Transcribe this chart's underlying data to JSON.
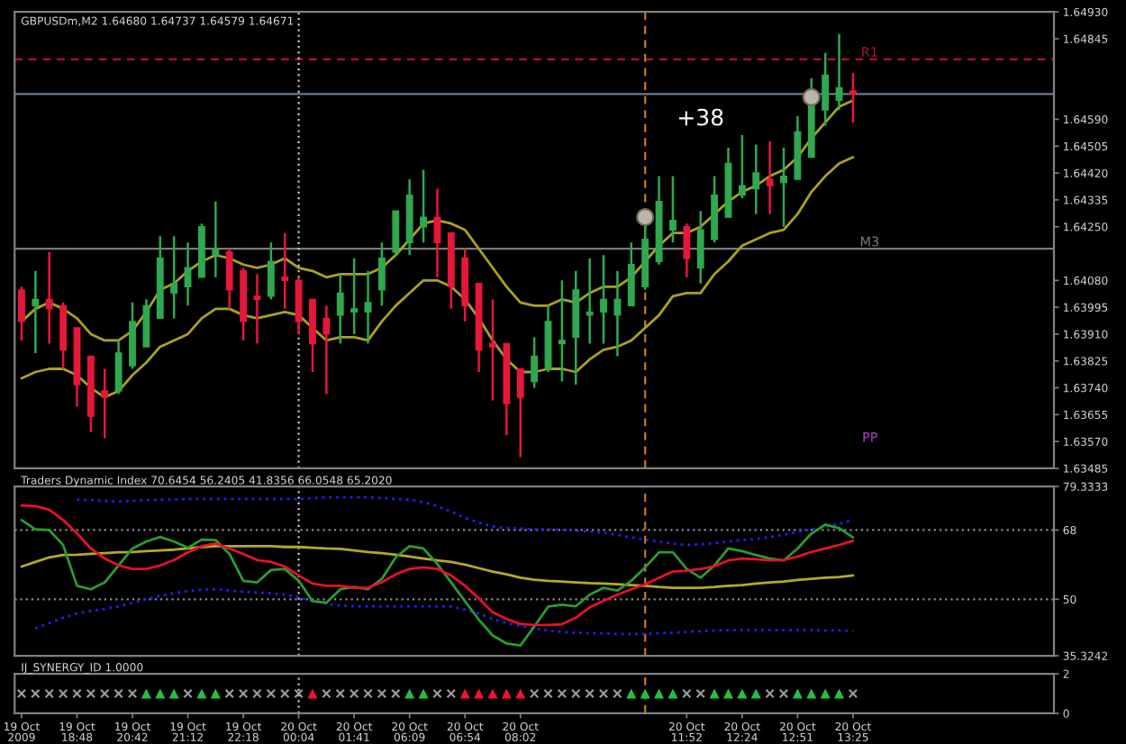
{
  "chart_data": [
    {
      "type": "candlestick",
      "title": "GBPUSDm,M2 1.64680 1.64737 1.64579 1.64671",
      "categories": [
        "19 Oct 2009",
        null,
        null,
        null,
        "19 Oct 18:48",
        null,
        null,
        null,
        "19 Oct 20:42",
        null,
        null,
        null,
        "19 Oct 21:12",
        null,
        null,
        null,
        "19 Oct 22:18",
        null,
        null,
        null,
        "20 Oct 00:04",
        null,
        null,
        null,
        "20 Oct 01:41",
        null,
        null,
        null,
        "20 Oct 06:09",
        null,
        null,
        null,
        "20 Oct 06:54",
        null,
        null,
        null,
        "20 Oct 08:02",
        null,
        null,
        null,
        null,
        null,
        null,
        null,
        null,
        null,
        null,
        null,
        "20 Oct 11:52",
        null,
        null,
        null,
        "20 Oct 12:24",
        null,
        null,
        null,
        "20 Oct 12:51",
        null,
        null,
        null,
        "20 Oct 13:25",
        null,
        null,
        null,
        null,
        null,
        null,
        null,
        null,
        null,
        null,
        null,
        null,
        null,
        null
      ],
      "ohlc": [
        [
          1.6405,
          1.6406,
          1.6389,
          1.6395
        ],
        [
          1.64,
          1.6411,
          1.6385,
          1.6402
        ],
        [
          1.6402,
          1.6417,
          1.6388,
          1.6399
        ],
        [
          1.64,
          1.6401,
          1.638,
          1.6386
        ],
        [
          1.6393,
          1.6393,
          1.6368,
          1.6375
        ],
        [
          1.6384,
          1.6384,
          1.636,
          1.6365
        ],
        [
          1.6373,
          1.638,
          1.6358,
          1.6371
        ],
        [
          1.6373,
          1.6389,
          1.6372,
          1.6385
        ],
        [
          1.6381,
          1.6401,
          1.638,
          1.6395
        ],
        [
          1.6387,
          1.6402,
          1.6387,
          1.64
        ],
        [
          1.6396,
          1.6422,
          1.6396,
          1.6415
        ],
        [
          1.6404,
          1.6422,
          1.6396,
          1.6407
        ],
        [
          1.6406,
          1.642,
          1.64,
          1.6412
        ],
        [
          1.6409,
          1.6426,
          1.6409,
          1.6425
        ],
        [
          1.6416,
          1.6433,
          1.6409,
          1.6418
        ],
        [
          1.6417,
          1.6418,
          1.6399,
          1.6405
        ],
        [
          1.6411,
          1.6412,
          1.6389,
          1.6395
        ],
        [
          1.6403,
          1.641,
          1.6388,
          1.6402
        ],
        [
          1.6403,
          1.642,
          1.6402,
          1.6414
        ],
        [
          1.6409,
          1.6423,
          1.6399,
          1.6408
        ],
        [
          1.6408,
          1.6409,
          1.6391,
          1.6395
        ],
        [
          1.6402,
          1.6402,
          1.6379,
          1.6388
        ],
        [
          1.6396,
          1.64,
          1.6372,
          1.6391
        ],
        [
          1.6397,
          1.641,
          1.6388,
          1.6404
        ],
        [
          1.6398,
          1.6415,
          1.6391,
          1.6399
        ],
        [
          1.6398,
          1.6411,
          1.6388,
          1.6401
        ],
        [
          1.6405,
          1.642,
          1.64,
          1.6415
        ],
        [
          1.6417,
          1.643,
          1.6416,
          1.643
        ],
        [
          1.642,
          1.644,
          1.6416,
          1.6435
        ],
        [
          1.6425,
          1.6443,
          1.642,
          1.6428
        ],
        [
          1.6428,
          1.6437,
          1.6409,
          1.642
        ],
        [
          1.6423,
          1.6423,
          1.6399,
          1.6406
        ],
        [
          1.6415,
          1.6418,
          1.6395,
          1.64
        ],
        [
          1.6407,
          1.6407,
          1.6379,
          1.6386
        ],
        [
          1.6388,
          1.6402,
          1.637,
          1.6387
        ],
        [
          1.6388,
          1.6388,
          1.6359,
          1.6369
        ],
        [
          1.638,
          1.638,
          1.6352,
          1.6371
        ],
        [
          1.6376,
          1.639,
          1.6374,
          1.6384
        ],
        [
          1.638,
          1.64,
          1.6379,
          1.6395
        ],
        [
          1.6388,
          1.6408,
          1.6376,
          1.6389
        ],
        [
          1.639,
          1.6411,
          1.6375,
          1.6405
        ],
        [
          1.6397,
          1.6415,
          1.6388,
          1.6398
        ],
        [
          1.6398,
          1.6416,
          1.6388,
          1.6402
        ],
        [
          1.6397,
          1.6411,
          1.6384,
          1.6402
        ],
        [
          1.64,
          1.642,
          1.64,
          1.6413
        ],
        [
          1.6406,
          1.6427,
          1.6405,
          1.6421
        ],
        [
          1.6414,
          1.6441,
          1.6413,
          1.6433
        ],
        [
          1.6424,
          1.6441,
          1.642,
          1.6427
        ],
        [
          1.6425,
          1.6426,
          1.6409,
          1.6415
        ],
        [
          1.6412,
          1.643,
          1.6407,
          1.6424
        ],
        [
          1.6421,
          1.6441,
          1.642,
          1.6435
        ],
        [
          1.6428,
          1.645,
          1.6428,
          1.6445
        ],
        [
          1.6435,
          1.6454,
          1.6434,
          1.6438
        ],
        [
          1.6437,
          1.6451,
          1.6429,
          1.6442
        ],
        [
          1.644,
          1.6452,
          1.6429,
          1.6438
        ],
        [
          1.6439,
          1.645,
          1.6425,
          1.6441
        ],
        [
          1.644,
          1.646,
          1.644,
          1.6455
        ],
        [
          1.6447,
          1.6472,
          1.6447,
          1.6467
        ],
        [
          1.6462,
          1.648,
          1.6457,
          1.6473
        ],
        [
          1.6465,
          1.6486,
          1.6462,
          1.6469
        ],
        [
          1.6468,
          1.64737,
          1.64579,
          1.64671
        ],
        null,
        null,
        null,
        null,
        null,
        null,
        null,
        null,
        null,
        null,
        null,
        null,
        null,
        null
      ],
      "colors": [
        "#e5173b",
        "#2fa84f",
        "#e5173b",
        "#e5173b",
        "#e5173b",
        "#e5173b",
        "#e5173b",
        "#2fa84f",
        "#2fa84f",
        "#2fa84f",
        "#2fa84f",
        "#2fa84f",
        "#2fa84f",
        "#2fa84f",
        "#2fa84f",
        "#e5173b",
        "#e5173b",
        "#e5173b",
        "#2fa84f",
        "#e5173b",
        "#e5173b",
        "#e5173b",
        "#e5173b",
        "#2fa84f",
        "#2fa84f",
        "#2fa84f",
        "#2fa84f",
        "#2fa84f",
        "#2fa84f",
        "#2fa84f",
        "#e5173b",
        "#e5173b",
        "#e5173b",
        "#e5173b",
        "#e5173b",
        "#e5173b",
        "#e5173b",
        "#2fa84f",
        "#2fa84f",
        "#2fa84f",
        "#2fa84f",
        "#2fa84f",
        "#2fa84f",
        "#2fa84f",
        "#2fa84f",
        "#2fa84f",
        "#2fa84f",
        "#2fa84f",
        "#e5173b",
        "#2fa84f",
        "#2fa84f",
        "#2fa84f",
        "#2fa84f",
        "#2fa84f",
        "#e5173b",
        "#2fa84f",
        "#2fa84f",
        "#2fa84f",
        "#2fa84f",
        "#2fa84f",
        "#e5173b",
        null,
        null,
        null,
        null,
        null,
        null,
        null,
        null,
        null,
        null,
        null,
        null,
        null,
        null
      ],
      "series": [
        {
          "type": "line",
          "color": "#aaa21e",
          "values": [
            1.6395,
            1.6399,
            1.6401,
            1.6399,
            1.6396,
            1.6391,
            1.6389,
            1.6389,
            1.6392,
            1.6398,
            1.6405,
            1.6407,
            1.6411,
            1.6414,
            1.6416,
            1.6415,
            1.6413,
            1.6412,
            1.6413,
            1.6415,
            1.6412,
            1.6411,
            1.6409,
            1.641,
            1.641,
            1.641,
            1.6412,
            1.6416,
            1.6421,
            1.6426,
            1.6427,
            1.6426,
            1.6424,
            1.6418,
            1.6412,
            1.6406,
            1.6401,
            1.64,
            1.64,
            1.6402,
            1.6401,
            1.6404,
            1.6406,
            1.6406,
            1.6409,
            1.6414,
            1.6419,
            1.6423,
            1.6423,
            1.6425,
            1.6429,
            1.6433,
            1.6436,
            1.6438,
            1.6441,
            1.6443,
            1.6447,
            1.6453,
            1.6458,
            1.6463,
            1.6465,
            null,
            null,
            null,
            null,
            null,
            null,
            null,
            null,
            null,
            null,
            null,
            null,
            null,
            null
          ]
        },
        {
          "type": "line",
          "color": "#aaa21e",
          "values": [
            1.6377,
            1.6379,
            1.638,
            1.638,
            1.6378,
            1.6374,
            1.6371,
            1.6373,
            1.6378,
            1.6382,
            1.6387,
            1.6389,
            1.6391,
            1.6396,
            1.6399,
            1.6399,
            1.6397,
            1.6396,
            1.6397,
            1.6398,
            1.6397,
            1.6393,
            1.6389,
            1.639,
            1.639,
            1.6389,
            1.6395,
            1.64,
            1.6404,
            1.6408,
            1.6408,
            1.6406,
            1.6402,
            1.6396,
            1.6389,
            1.6383,
            1.6379,
            1.6379,
            1.638,
            1.638,
            1.6379,
            1.6383,
            1.6386,
            1.6387,
            1.6389,
            1.6393,
            1.6397,
            1.6403,
            1.6404,
            1.6404,
            1.641,
            1.6414,
            1.6419,
            1.6421,
            1.6423,
            1.6424,
            1.6429,
            1.6436,
            1.6441,
            1.6445,
            1.6447,
            null,
            null,
            null,
            null,
            null,
            null,
            null,
            null,
            null,
            null,
            null,
            null,
            null,
            null
          ]
        },
        {
          "type": "scatter",
          "marker": "circle",
          "color": "#bdb6a6",
          "values": [
            null,
            null,
            null,
            null,
            null,
            null,
            null,
            null,
            null,
            null,
            null,
            null,
            null,
            null,
            null,
            null,
            null,
            null,
            null,
            null,
            null,
            null,
            null,
            null,
            null,
            null,
            null,
            null,
            null,
            null,
            null,
            null,
            null,
            null,
            null,
            null,
            null,
            null,
            null,
            null,
            null,
            null,
            null,
            null,
            null,
            1.6428,
            null,
            null,
            null,
            null,
            null,
            null,
            null,
            null,
            null,
            null,
            null,
            1.6466,
            null,
            null,
            null,
            null,
            null,
            null,
            null,
            null,
            null,
            null,
            null,
            null,
            null,
            null,
            null,
            null,
            null
          ]
        }
      ],
      "ylim": [
        1.63485,
        1.6493
      ],
      "yticks": [
        1.63485,
        {
          "value": 1.6357,
          "label": "1.63570"
        },
        1.63655,
        {
          "value": 1.6374,
          "label": "1.63740"
        },
        1.63825,
        {
          "value": 1.6391,
          "label": "1.63910"
        },
        1.63995,
        {
          "value": 1.6408,
          "label": "1.64080"
        },
        {
          "value": 1.6425,
          "label": "1.64250"
        },
        1.64335,
        {
          "value": 1.6442,
          "label": "1.64420"
        },
        1.64505,
        {
          "value": 1.6459,
          "label": "1.64590"
        },
        1.64845,
        {
          "value": 1.6493,
          "label": "1.64930"
        }
      ],
      "ref_lines": [
        {
          "axis": "y",
          "value": 1.6478,
          "label": "R1",
          "color": "#b0102c",
          "line_style": "dashed"
        },
        {
          "axis": "y",
          "value": 1.6467,
          "color": "#6b7890"
        },
        {
          "axis": "y",
          "value": 1.6418,
          "label": "M3",
          "color": "#7a7a7a"
        },
        {
          "axis": "x",
          "value": "20 Oct 00:04",
          "color": "#c8c8c8",
          "line_style": "dotted"
        }
      ],
      "annotations": [
        "+38",
        "PP"
      ],
      "tick_labels": "y"
    },
    {
      "type": "line",
      "title": "Traders Dynamic Index 70.6454 56.2405 41.8356 66.0548 65.2020",
      "categories": [
        "19 Oct 2009",
        null,
        null,
        null,
        "19 Oct 18:48",
        null,
        null,
        null,
        "19 Oct 20:42",
        null,
        null,
        null,
        "19 Oct 21:12",
        null,
        null,
        null,
        "19 Oct 22:18",
        null,
        null,
        null,
        "20 Oct 00:04",
        null,
        null,
        null,
        "20 Oct 01:41",
        null,
        null,
        null,
        "20 Oct 06:09",
        null,
        null,
        null,
        "20 Oct 06:54",
        null,
        null,
        null,
        "20 Oct 08:02",
        null,
        null,
        null,
        null,
        null,
        null,
        null,
        null,
        null,
        null,
        null,
        "20 Oct 11:52",
        null,
        null,
        null,
        "20 Oct 12:24",
        null,
        null,
        null,
        "20 Oct 12:51",
        null,
        null,
        null,
        "20 Oct 13:25",
        null,
        null,
        null,
        null,
        null,
        null,
        null,
        null,
        null,
        null,
        null,
        null,
        null,
        null
      ],
      "series": [
        {
          "color": "#2020ff",
          "line_style": "dotted",
          "values": [
            null,
            null,
            null,
            null,
            75.9,
            75.8,
            75.6,
            75.4,
            75.6,
            75.8,
            75.9,
            75.9,
            76.1,
            76.1,
            76.1,
            76.1,
            76.1,
            76.1,
            76.1,
            76.1,
            76.1,
            76.3,
            76.5,
            76.5,
            76.5,
            76.5,
            76.3,
            76.1,
            75.9,
            75.2,
            74.2,
            72.8,
            71.2,
            69.9,
            68.9,
            68.5,
            68.4,
            68.2,
            68.2,
            68.0,
            67.8,
            67.6,
            67.3,
            66.8,
            66.1,
            65.5,
            65.0,
            64.5,
            64.1,
            64.3,
            64.6,
            65.0,
            65.4,
            65.7,
            66.1,
            66.8,
            67.5,
            68.2,
            68.9,
            69.6,
            70.6,
            null,
            null,
            null,
            null,
            null,
            null,
            null,
            null,
            null,
            null,
            null,
            null,
            null,
            null
          ]
        },
        {
          "color": "#2020ff",
          "line_style": "dotted",
          "values": [
            null,
            42.4,
            43.8,
            45.2,
            46.3,
            47.0,
            47.5,
            48.2,
            49.1,
            50.0,
            50.9,
            51.6,
            52.1,
            52.5,
            52.6,
            52.3,
            51.9,
            51.8,
            51.6,
            51.2,
            50.5,
            49.5,
            48.8,
            48.4,
            48.2,
            48.2,
            48.2,
            48.2,
            48.2,
            48.2,
            48.2,
            48.1,
            47.3,
            46.3,
            44.9,
            43.8,
            43.1,
            42.4,
            41.9,
            41.5,
            41.3,
            41.2,
            41.2,
            41.0,
            41.0,
            41.0,
            41.2,
            41.3,
            41.5,
            41.7,
            41.9,
            42.0,
            42.0,
            42.0,
            42.0,
            42.0,
            42.0,
            42.0,
            41.9,
            41.9,
            41.8,
            null,
            null,
            null,
            null,
            null,
            null,
            null,
            null,
            null,
            null,
            null,
            null,
            null,
            null
          ]
        },
        {
          "color": "#b4aa28",
          "values": [
            58.5,
            59.7,
            60.9,
            61.5,
            61.6,
            61.8,
            62.0,
            62.2,
            62.3,
            62.5,
            62.7,
            62.9,
            63.2,
            63.6,
            63.8,
            63.8,
            63.8,
            63.8,
            63.8,
            63.6,
            63.6,
            63.4,
            63.2,
            63.1,
            62.7,
            62.3,
            62.0,
            61.6,
            61.1,
            60.6,
            60.1,
            59.7,
            59.0,
            58.1,
            57.2,
            56.5,
            55.6,
            55.1,
            54.8,
            54.6,
            54.4,
            54.2,
            54.1,
            53.9,
            53.7,
            53.5,
            53.2,
            53.0,
            53.0,
            53.0,
            53.2,
            53.5,
            53.7,
            54.1,
            54.4,
            54.6,
            55.0,
            55.3,
            55.6,
            55.8,
            56.2,
            null,
            null,
            null,
            null,
            null,
            null,
            null,
            null,
            null,
            null,
            null,
            null,
            null,
            null
          ]
        },
        {
          "color": "#2e9a2e",
          "values": [
            70.6,
            68.2,
            68.0,
            64.1,
            53.5,
            52.6,
            54.4,
            58.8,
            63.2,
            65.0,
            66.2,
            65.0,
            63.4,
            65.5,
            65.4,
            61.8,
            54.8,
            54.4,
            57.6,
            57.9,
            54.8,
            49.5,
            49.1,
            52.6,
            53.2,
            52.6,
            55.3,
            60.9,
            63.8,
            63.2,
            59.2,
            54.4,
            49.5,
            44.7,
            40.6,
            38.5,
            38.0,
            42.9,
            48.1,
            48.6,
            48.2,
            51.2,
            53.0,
            52.3,
            54.8,
            58.3,
            62.2,
            62.2,
            57.9,
            55.6,
            58.8,
            63.2,
            62.5,
            61.5,
            60.6,
            60.1,
            63.2,
            67.1,
            69.4,
            68.5,
            66.1,
            null,
            null,
            null,
            null,
            null,
            null,
            null,
            null,
            null,
            null,
            null,
            null,
            null,
            null
          ]
        },
        {
          "color": "#e8102a",
          "values": [
            74.4,
            74.2,
            73.3,
            70.6,
            67.1,
            63.2,
            60.6,
            58.8,
            57.9,
            57.9,
            58.8,
            60.2,
            62.2,
            63.8,
            64.5,
            63.2,
            61.8,
            60.2,
            59.7,
            58.5,
            56.2,
            54.1,
            53.5,
            53.5,
            53.0,
            53.0,
            54.4,
            56.5,
            57.9,
            58.3,
            57.9,
            56.2,
            53.5,
            50.2,
            46.6,
            44.9,
            43.6,
            43.3,
            43.3,
            43.5,
            45.2,
            47.9,
            49.6,
            51.2,
            52.6,
            53.9,
            55.6,
            57.2,
            57.4,
            57.9,
            58.6,
            60.1,
            60.6,
            60.4,
            60.1,
            60.2,
            61.1,
            62.3,
            63.2,
            64.1,
            65.2,
            null,
            null,
            null,
            null,
            null,
            null,
            null,
            null,
            null,
            null,
            null,
            null,
            null,
            null
          ]
        }
      ],
      "ylim": [
        35.3242,
        79.3333
      ],
      "yticks": [
        35.3242,
        50,
        68,
        79.3333
      ],
      "ref_lines": [
        {
          "axis": "y",
          "value": 68,
          "color": "#8c8c8c",
          "line_style": "dotted"
        },
        {
          "axis": "y",
          "value": 50,
          "color": "#8c8c8c",
          "line_style": "dotted"
        },
        {
          "axis": "x",
          "value": "20 Oct 00:04",
          "color": "#c8c8c8",
          "line_style": "dotted"
        }
      ],
      "tick_labels": "y"
    },
    {
      "type": "scatter",
      "title": "IJ_SYNERGY_ID 1.0000",
      "categories": [
        "19 Oct 2009",
        null,
        null,
        null,
        "19 Oct 18:48",
        null,
        null,
        null,
        "19 Oct 20:42",
        null,
        null,
        null,
        "19 Oct 21:12",
        null,
        null,
        null,
        "19 Oct 22:18",
        null,
        null,
        null,
        "20 Oct 00:04",
        null,
        null,
        null,
        "20 Oct 01:41",
        null,
        null,
        null,
        "20 Oct 06:09",
        null,
        null,
        null,
        "20 Oct 06:54",
        null,
        null,
        null,
        "20 Oct 08:02",
        null,
        null,
        null,
        null,
        null,
        null,
        null,
        null,
        null,
        null,
        null,
        "20 Oct 11:52",
        null,
        null,
        null,
        "20 Oct 12:24",
        null,
        null,
        null,
        "20 Oct 12:51",
        null,
        null,
        null,
        "20 Oct 13:25",
        null,
        null,
        null,
        null,
        null,
        null,
        null,
        null,
        null,
        null,
        null,
        null,
        null,
        null
      ],
      "series": [
        {
          "color": "#9a9a9a",
          "marker": "cross",
          "values": [
            1,
            1,
            1,
            1,
            1,
            1,
            1,
            1,
            1,
            null,
            null,
            null,
            1,
            null,
            null,
            1,
            1,
            1,
            1,
            1,
            1,
            null,
            1,
            1,
            1,
            1,
            1,
            1,
            null,
            null,
            1,
            1,
            null,
            null,
            null,
            null,
            null,
            1,
            1,
            1,
            1,
            1,
            1,
            1,
            null,
            null,
            null,
            null,
            1,
            1,
            null,
            null,
            null,
            null,
            1,
            1,
            null,
            null,
            null,
            null,
            1,
            null,
            null,
            null,
            null,
            null,
            null,
            null,
            null,
            null,
            null,
            null,
            null,
            null,
            null
          ]
        },
        {
          "color": "#22c04a",
          "marker": "triangle",
          "values": [
            null,
            null,
            null,
            null,
            null,
            null,
            null,
            null,
            null,
            1,
            1,
            1,
            null,
            1,
            1,
            null,
            null,
            null,
            null,
            null,
            null,
            null,
            null,
            null,
            null,
            null,
            null,
            null,
            1,
            1,
            null,
            null,
            null,
            null,
            null,
            null,
            null,
            null,
            null,
            null,
            null,
            null,
            null,
            null,
            1,
            1,
            1,
            1,
            null,
            null,
            1,
            1,
            1,
            1,
            null,
            null,
            1,
            1,
            1,
            1,
            null,
            null,
            null,
            null,
            null,
            null,
            null,
            null,
            null,
            null,
            null,
            null,
            null,
            null,
            null
          ]
        },
        {
          "color": "#f0142e",
          "marker": "triangle",
          "values": [
            null,
            null,
            null,
            null,
            null,
            null,
            null,
            null,
            null,
            null,
            null,
            null,
            null,
            null,
            null,
            null,
            null,
            null,
            null,
            null,
            null,
            1,
            null,
            null,
            null,
            null,
            null,
            null,
            null,
            null,
            null,
            null,
            1,
            1,
            1,
            1,
            1,
            null,
            null,
            null,
            null,
            null,
            null,
            null,
            null,
            null,
            null,
            null,
            null,
            null,
            null,
            null,
            null,
            null,
            null,
            null,
            null,
            null,
            null,
            null,
            null,
            null,
            null,
            null,
            null,
            null,
            null,
            null,
            null,
            null,
            null,
            null,
            null,
            null,
            null
          ]
        }
      ],
      "ylim": [
        0,
        2
      ],
      "yticks": [
        0,
        2
      ],
      "ref_lines": [
        {
          "axis": "x",
          "value": "20 Oct 00:04",
          "color": "#c8c8c8",
          "line_style": "dotted"
        }
      ]
    }
  ]
}
